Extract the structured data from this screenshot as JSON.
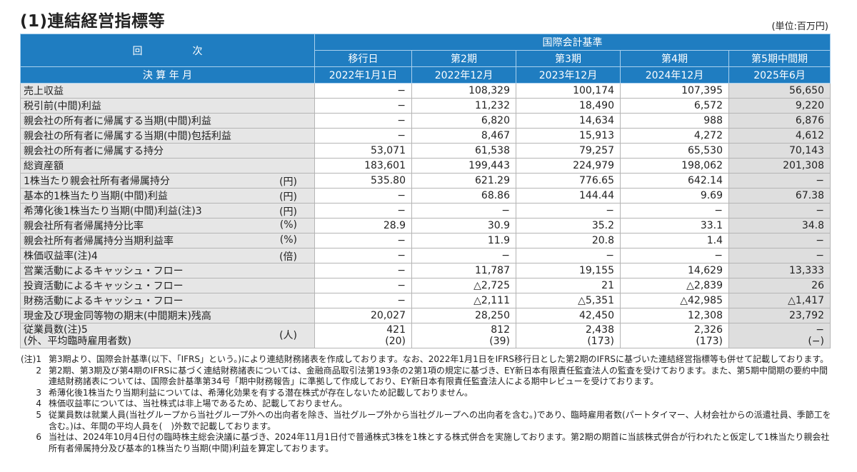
{
  "title": "(1)連結経営指標等",
  "unit": "(単位:百万円)",
  "header": {
    "kaiji": "回　　　　　次",
    "kessan": "決 算 年 月",
    "standard": "国際会計基準",
    "periods": [
      "移行日",
      "第2期",
      "第3期",
      "第4期",
      "第5期中間期"
    ],
    "dates": [
      "2022年1月1日",
      "2022年12月",
      "2023年12月",
      "2024年12月",
      "2025年6月"
    ]
  },
  "rows": [
    {
      "label": "売上収益",
      "unit": "",
      "values": [
        "−",
        "108,329",
        "100,174",
        "107,395",
        "56,650"
      ]
    },
    {
      "label": "税引前(中間)利益",
      "unit": "",
      "values": [
        "−",
        "11,232",
        "18,490",
        "6,572",
        "9,220"
      ]
    },
    {
      "label": "親会社の所有者に帰属する当期(中間)利益",
      "unit": "",
      "values": [
        "−",
        "6,820",
        "14,634",
        "988",
        "6,876"
      ]
    },
    {
      "label": "親会社の所有者に帰属する当期(中間)包括利益",
      "unit": "",
      "values": [
        "−",
        "8,467",
        "15,913",
        "4,272",
        "4,612"
      ]
    },
    {
      "label": "親会社の所有者に帰属する持分",
      "unit": "",
      "values": [
        "53,071",
        "61,538",
        "79,257",
        "65,530",
        "70,143"
      ]
    },
    {
      "label": "総資産額",
      "unit": "",
      "values": [
        "183,601",
        "199,443",
        "224,979",
        "198,062",
        "201,308"
      ]
    },
    {
      "label": "1株当たり親会社所有者帰属持分",
      "unit": "(円)",
      "values": [
        "535.80",
        "621.29",
        "776.65",
        "642.14",
        "−"
      ]
    },
    {
      "label": "基本的1株当たり当期(中間)利益",
      "unit": "(円)",
      "values": [
        "−",
        "68.86",
        "144.44",
        "9.69",
        "67.38"
      ]
    },
    {
      "label": "希薄化後1株当たり当期(中間)利益(注)3",
      "unit": "(円)",
      "values": [
        "−",
        "−",
        "−",
        "−",
        "−"
      ]
    },
    {
      "label": "親会社所有者帰属持分比率",
      "unit": "(%)",
      "values": [
        "28.9",
        "30.9",
        "35.2",
        "33.1",
        "34.8"
      ]
    },
    {
      "label": "親会社所有者帰属持分当期利益率",
      "unit": "(%)",
      "values": [
        "−",
        "11.9",
        "20.8",
        "1.4",
        "−"
      ]
    },
    {
      "label": "株価収益率(注)4",
      "unit": "(倍)",
      "values": [
        "−",
        "−",
        "−",
        "−",
        "−"
      ]
    },
    {
      "label": "営業活動によるキャッシュ・フロー",
      "unit": "",
      "values": [
        "−",
        "11,787",
        "19,155",
        "14,629",
        "13,333"
      ]
    },
    {
      "label": "投資活動によるキャッシュ・フロー",
      "unit": "",
      "values": [
        "−",
        "△2,725",
        "21",
        "△2,839",
        "26"
      ]
    },
    {
      "label": "財務活動によるキャッシュ・フロー",
      "unit": "",
      "values": [
        "−",
        "△2,111",
        "△5,351",
        "△42,985",
        "△1,417"
      ]
    },
    {
      "label": "現金及び現金同等物の期末(中間期末)残高",
      "unit": "",
      "values": [
        "20,027",
        "28,250",
        "42,450",
        "12,308",
        "23,792"
      ]
    }
  ],
  "employees": {
    "label1": "従業員数(注)5",
    "label2": "(外、平均臨時雇用者数)",
    "unit": "(人)",
    "values": [
      "421",
      "812",
      "2,438",
      "2,326",
      "−"
    ],
    "temp": [
      "(20)",
      "(39)",
      "(173)",
      "(173)",
      "(−)"
    ]
  },
  "notes": [
    {
      "num": "(注)1",
      "text": "第3期より、国際会計基準(以下、「IFRS」という。)により連結財務諸表を作成しております。なお、2022年1月1日をIFRS移行日とした第2期のIFRSに基づいた連結経営指標等も併せて記載しております。"
    },
    {
      "num": "2",
      "text": "第2期、第3期及び第4期のIFRSに基づく連結財務諸表については、金融商品取引法第193条の2第1項の規定に基づき、EY新日本有限責任監査法人の監査を受けております。また、第5期中間期の要約中間連結財務諸表については、国際会計基準第34号「期中財務報告」に準拠して作成しており、EY新日本有限責任監査法人による期中レビューを受けております。"
    },
    {
      "num": "3",
      "text": "希薄化後1株当たり当期利益については、希薄化効果を有する潜在株式が存在しないため記載しておりません。"
    },
    {
      "num": "4",
      "text": "株価収益率については、当社株式は非上場であるため、記載しておりません。"
    },
    {
      "num": "5",
      "text": "従業員数は就業人員(当社グループから当社グループ外への出向者を除き、当社グループ外から当社グループへの出向者を含む。)であり、臨時雇用者数(パートタイマー、人材会社からの派遣社員、季節工を含む。)は、年間の平均人員を(　)外数で記載しております。"
    },
    {
      "num": "6",
      "text": "当社は、2024年10月4日付の臨時株主総会決議に基づき、2024年11月1日付で普通株式3株を1株とする株式併合を実施しております。第2期の期首に当該株式併合が行われたと仮定して1株当たり親会社所有者帰属持分及び基本的1株当たり当期(中間)利益を算定しております。"
    }
  ]
}
